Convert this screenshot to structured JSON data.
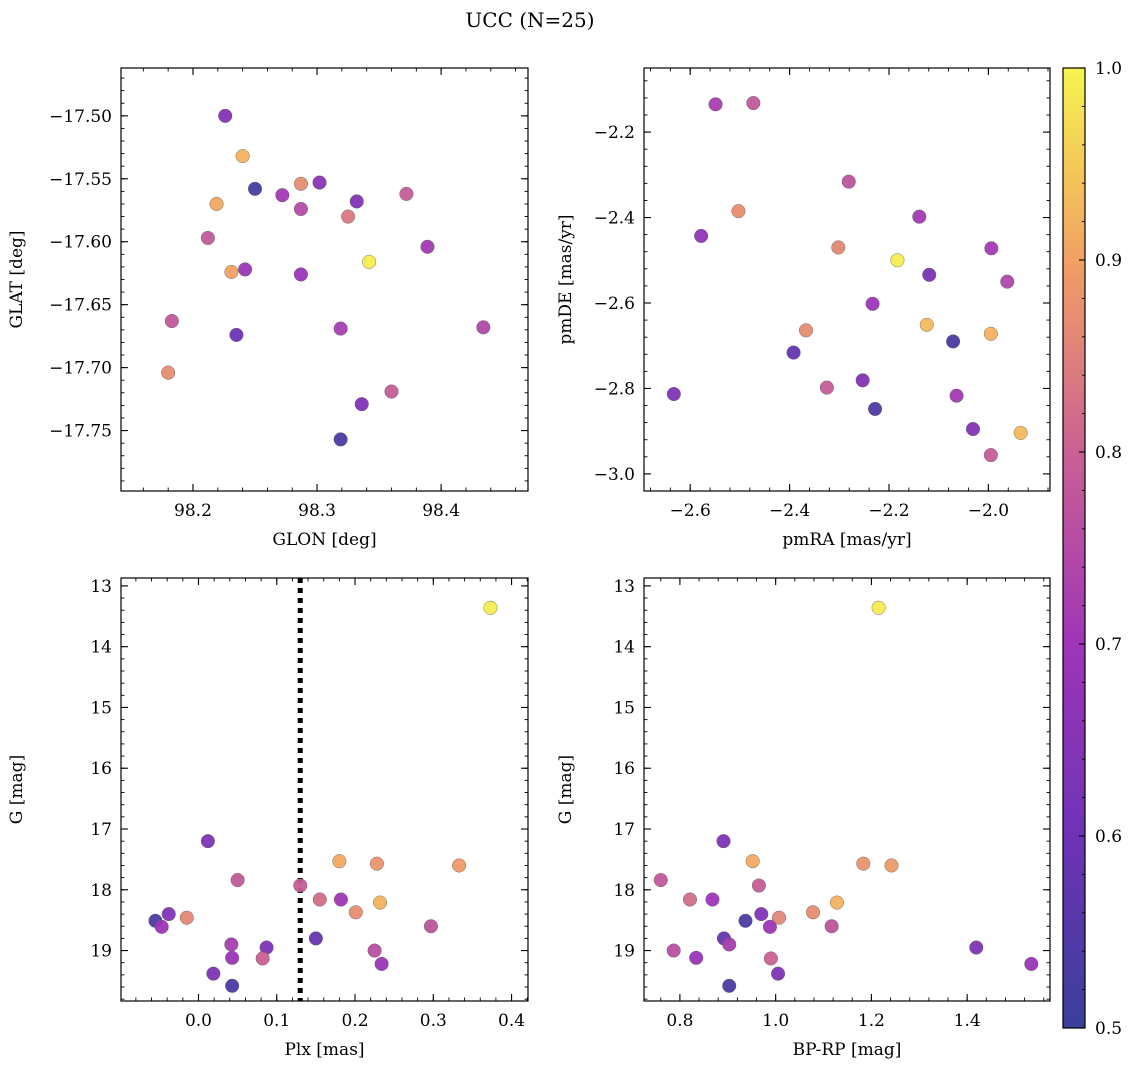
{
  "figure": {
    "title": "UCC (N=25)"
  },
  "colorbar": {
    "range": [
      0.5,
      1.0
    ],
    "ticks": [
      0.5,
      0.6,
      0.7,
      0.8,
      0.9,
      1.0
    ],
    "tick_labels": [
      "0.5",
      "0.6",
      "0.7",
      "0.8",
      "0.9",
      "1.0"
    ],
    "colormap": "plasma"
  },
  "chart_data": [
    {
      "type": "scatter",
      "xlabel": "GLON [deg]",
      "ylabel": "GLAT [deg]",
      "xlim": [
        98.142,
        98.47
      ],
      "ylim": [
        -17.798,
        -17.462
      ],
      "xticks": [
        98.2,
        98.3,
        98.4
      ],
      "xtick_labels": [
        "98.2",
        "98.3",
        "98.4"
      ],
      "yticks": [
        -17.5,
        -17.55,
        -17.6,
        -17.65,
        -17.7,
        -17.75
      ],
      "ytick_labels": [
        "−17.50",
        "−17.55",
        "−17.60",
        "−17.65",
        "−17.70",
        "−17.75"
      ],
      "xminor": 0.02,
      "yminor": 0.01,
      "points": [
        {
          "x": 98.226,
          "y": -17.5,
          "c": 0.64
        },
        {
          "x": 98.24,
          "y": -17.532,
          "c": 0.92
        },
        {
          "x": 98.25,
          "y": -17.558,
          "c": 0.52
        },
        {
          "x": 98.272,
          "y": -17.563,
          "c": 0.71
        },
        {
          "x": 98.287,
          "y": -17.554,
          "c": 0.87
        },
        {
          "x": 98.302,
          "y": -17.553,
          "c": 0.66
        },
        {
          "x": 98.287,
          "y": -17.574,
          "c": 0.75
        },
        {
          "x": 98.325,
          "y": -17.58,
          "c": 0.84
        },
        {
          "x": 98.332,
          "y": -17.568,
          "c": 0.64
        },
        {
          "x": 98.372,
          "y": -17.562,
          "c": 0.79
        },
        {
          "x": 98.219,
          "y": -17.57,
          "c": 0.91
        },
        {
          "x": 98.212,
          "y": -17.597,
          "c": 0.78
        },
        {
          "x": 98.389,
          "y": -17.604,
          "c": 0.71
        },
        {
          "x": 98.342,
          "y": -17.616,
          "c": 0.99
        },
        {
          "x": 98.231,
          "y": -17.624,
          "c": 0.9
        },
        {
          "x": 98.242,
          "y": -17.622,
          "c": 0.69
        },
        {
          "x": 98.287,
          "y": -17.626,
          "c": 0.69
        },
        {
          "x": 98.183,
          "y": -17.663,
          "c": 0.78
        },
        {
          "x": 98.235,
          "y": -17.674,
          "c": 0.6
        },
        {
          "x": 98.319,
          "y": -17.669,
          "c": 0.72
        },
        {
          "x": 98.434,
          "y": -17.668,
          "c": 0.74
        },
        {
          "x": 98.18,
          "y": -17.704,
          "c": 0.87
        },
        {
          "x": 98.36,
          "y": -17.719,
          "c": 0.79
        },
        {
          "x": 98.336,
          "y": -17.729,
          "c": 0.64
        },
        {
          "x": 98.319,
          "y": -17.757,
          "c": 0.53
        }
      ]
    },
    {
      "type": "scatter",
      "xlabel": "pmRA [mas/yr]",
      "ylabel": "pmDE [mas/yr]",
      "xlim": [
        -2.693,
        -1.876
      ],
      "ylim": [
        -3.04,
        -2.05
      ],
      "xticks": [
        -2.6,
        -2.4,
        -2.2,
        -2.0
      ],
      "xtick_labels": [
        "−2.6",
        "−2.4",
        "−2.2",
        "−2.0"
      ],
      "yticks": [
        -2.2,
        -2.4,
        -2.6,
        -2.8,
        -3.0
      ],
      "ytick_labels": [
        "−2.2",
        "−2.4",
        "−2.6",
        "−2.8",
        "−3.0"
      ],
      "xminor": 0.04,
      "yminor": 0.04,
      "points": [
        {
          "x": -2.549,
          "y": -2.135,
          "c": 0.72
        },
        {
          "x": -2.473,
          "y": -2.132,
          "c": 0.78
        },
        {
          "x": -2.281,
          "y": -2.316,
          "c": 0.77
        },
        {
          "x": -2.503,
          "y": -2.385,
          "c": 0.87
        },
        {
          "x": -2.578,
          "y": -2.443,
          "c": 0.67
        },
        {
          "x": -2.139,
          "y": -2.398,
          "c": 0.71
        },
        {
          "x": -2.302,
          "y": -2.47,
          "c": 0.86
        },
        {
          "x": -1.994,
          "y": -2.472,
          "c": 0.71
        },
        {
          "x": -2.183,
          "y": -2.5,
          "c": 0.99
        },
        {
          "x": -2.119,
          "y": -2.534,
          "c": 0.62
        },
        {
          "x": -1.962,
          "y": -2.55,
          "c": 0.74
        },
        {
          "x": -2.233,
          "y": -2.602,
          "c": 0.7
        },
        {
          "x": -2.124,
          "y": -2.651,
          "c": 0.93
        },
        {
          "x": -2.367,
          "y": -2.664,
          "c": 0.87
        },
        {
          "x": -1.995,
          "y": -2.672,
          "c": 0.92
        },
        {
          "x": -2.071,
          "y": -2.69,
          "c": 0.53
        },
        {
          "x": -2.392,
          "y": -2.716,
          "c": 0.58
        },
        {
          "x": -2.253,
          "y": -2.781,
          "c": 0.64
        },
        {
          "x": -2.325,
          "y": -2.798,
          "c": 0.79
        },
        {
          "x": -2.633,
          "y": -2.813,
          "c": 0.63
        },
        {
          "x": -2.064,
          "y": -2.817,
          "c": 0.71
        },
        {
          "x": -2.228,
          "y": -2.848,
          "c": 0.54
        },
        {
          "x": -2.031,
          "y": -2.895,
          "c": 0.64
        },
        {
          "x": -1.935,
          "y": -2.904,
          "c": 0.93
        },
        {
          "x": -1.995,
          "y": -2.956,
          "c": 0.79
        }
      ]
    },
    {
      "type": "scatter",
      "xlabel": "Plx [mas]",
      "ylabel": "G [mag]",
      "xlim": [
        -0.099,
        0.421
      ],
      "ylim": [
        19.83,
        12.87
      ],
      "xticks": [
        0.0,
        0.1,
        0.2,
        0.3,
        0.4
      ],
      "xtick_labels": [
        "0.0",
        "0.1",
        "0.2",
        "0.3",
        "0.4"
      ],
      "yticks": [
        13,
        14,
        15,
        16,
        17,
        18,
        19
      ],
      "ytick_labels": [
        "13",
        "14",
        "15",
        "16",
        "17",
        "18",
        "19"
      ],
      "xminor": 0.02,
      "yminor": 0.2,
      "vline": 0.13,
      "points": [
        {
          "x": 0.373,
          "y": 13.36,
          "c": 0.99
        },
        {
          "x": 0.012,
          "y": 17.2,
          "c": 0.63
        },
        {
          "x": 0.18,
          "y": 17.53,
          "c": 0.91
        },
        {
          "x": 0.228,
          "y": 17.57,
          "c": 0.88
        },
        {
          "x": 0.333,
          "y": 17.6,
          "c": 0.89
        },
        {
          "x": 0.05,
          "y": 17.84,
          "c": 0.78
        },
        {
          "x": 0.13,
          "y": 17.93,
          "c": 0.79
        },
        {
          "x": 0.155,
          "y": 18.16,
          "c": 0.82
        },
        {
          "x": 0.182,
          "y": 18.16,
          "c": 0.7
        },
        {
          "x": 0.232,
          "y": 18.21,
          "c": 0.92
        },
        {
          "x": 0.201,
          "y": 18.37,
          "c": 0.87
        },
        {
          "x": -0.038,
          "y": 18.4,
          "c": 0.64
        },
        {
          "x": -0.015,
          "y": 18.46,
          "c": 0.86
        },
        {
          "x": -0.055,
          "y": 18.51,
          "c": 0.53
        },
        {
          "x": -0.047,
          "y": 18.61,
          "c": 0.7
        },
        {
          "x": 0.297,
          "y": 18.6,
          "c": 0.77
        },
        {
          "x": 0.15,
          "y": 18.8,
          "c": 0.58
        },
        {
          "x": 0.042,
          "y": 18.9,
          "c": 0.72
        },
        {
          "x": 0.087,
          "y": 18.95,
          "c": 0.63
        },
        {
          "x": 0.225,
          "y": 19.0,
          "c": 0.76
        },
        {
          "x": 0.043,
          "y": 19.12,
          "c": 0.69
        },
        {
          "x": 0.082,
          "y": 19.13,
          "c": 0.8
        },
        {
          "x": 0.234,
          "y": 19.22,
          "c": 0.69
        },
        {
          "x": 0.019,
          "y": 19.38,
          "c": 0.63
        },
        {
          "x": 0.043,
          "y": 19.58,
          "c": 0.53
        }
      ]
    },
    {
      "type": "scatter",
      "xlabel": "BP-RP [mag]",
      "ylabel": "G [mag]",
      "xlim": [
        0.725,
        1.573
      ],
      "ylim": [
        19.83,
        12.87
      ],
      "xticks": [
        0.8,
        1.0,
        1.2,
        1.4
      ],
      "xtick_labels": [
        "0.8",
        "1.0",
        "1.2",
        "1.4"
      ],
      "yticks": [
        13,
        14,
        15,
        16,
        17,
        18,
        19
      ],
      "ytick_labels": [
        "13",
        "14",
        "15",
        "16",
        "17",
        "18",
        "19"
      ],
      "xminor": 0.04,
      "yminor": 0.2,
      "points": [
        {
          "x": 1.215,
          "y": 13.36,
          "c": 0.99
        },
        {
          "x": 0.891,
          "y": 17.2,
          "c": 0.63
        },
        {
          "x": 0.952,
          "y": 17.53,
          "c": 0.91
        },
        {
          "x": 1.183,
          "y": 17.57,
          "c": 0.88
        },
        {
          "x": 1.242,
          "y": 17.6,
          "c": 0.89
        },
        {
          "x": 0.76,
          "y": 17.84,
          "c": 0.78
        },
        {
          "x": 0.965,
          "y": 17.93,
          "c": 0.79
        },
        {
          "x": 0.821,
          "y": 18.16,
          "c": 0.82
        },
        {
          "x": 0.868,
          "y": 18.16,
          "c": 0.7
        },
        {
          "x": 1.128,
          "y": 18.21,
          "c": 0.92
        },
        {
          "x": 1.078,
          "y": 18.37,
          "c": 0.87
        },
        {
          "x": 0.97,
          "y": 18.4,
          "c": 0.64
        },
        {
          "x": 1.007,
          "y": 18.46,
          "c": 0.86
        },
        {
          "x": 0.937,
          "y": 18.51,
          "c": 0.53
        },
        {
          "x": 0.988,
          "y": 18.61,
          "c": 0.7
        },
        {
          "x": 1.117,
          "y": 18.6,
          "c": 0.77
        },
        {
          "x": 0.892,
          "y": 18.8,
          "c": 0.58
        },
        {
          "x": 0.903,
          "y": 18.9,
          "c": 0.72
        },
        {
          "x": 1.419,
          "y": 18.95,
          "c": 0.63
        },
        {
          "x": 0.787,
          "y": 19.0,
          "c": 0.76
        },
        {
          "x": 0.834,
          "y": 19.12,
          "c": 0.69
        },
        {
          "x": 0.99,
          "y": 19.13,
          "c": 0.8
        },
        {
          "x": 1.534,
          "y": 19.22,
          "c": 0.69
        },
        {
          "x": 1.005,
          "y": 19.38,
          "c": 0.63
        },
        {
          "x": 0.903,
          "y": 19.58,
          "c": 0.53
        }
      ]
    }
  ]
}
